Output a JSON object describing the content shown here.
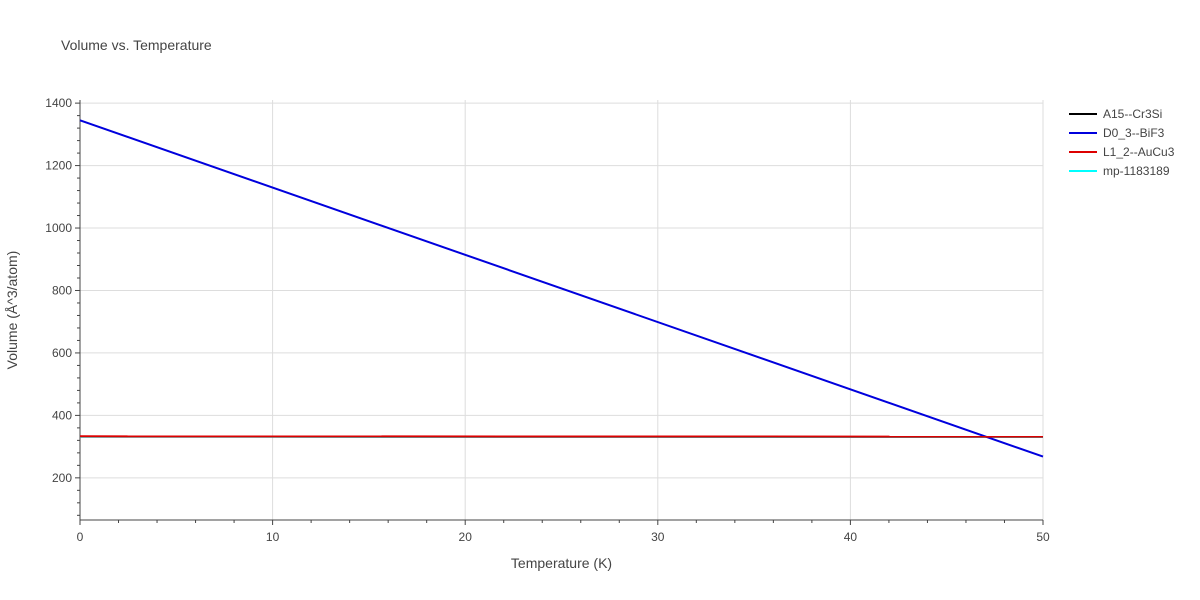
{
  "chart_data": {
    "type": "line",
    "title": "Volume vs. Temperature",
    "xlabel": "Temperature (K)",
    "ylabel": "Volume (Å^3/atom)",
    "xlim": [
      0,
      50
    ],
    "ylim": [
      65,
      1410
    ],
    "x_ticks": [
      0,
      10,
      20,
      30,
      40,
      50
    ],
    "y_ticks": [
      200,
      400,
      600,
      800,
      1000,
      1200,
      1400
    ],
    "grid": true,
    "legend_position": "top-right",
    "series": [
      {
        "name": "A15--Cr3Si",
        "color": "#000000",
        "x": [
          0,
          50
        ],
        "y": [
          332,
          331
        ]
      },
      {
        "name": "D0_3--BiF3",
        "color": "#0000dd",
        "x": [
          0,
          50
        ],
        "y": [
          1345,
          268
        ]
      },
      {
        "name": "L1_2--AuCu3",
        "color": "#dd0000",
        "x": [
          0,
          50
        ],
        "y": [
          333,
          332
        ]
      },
      {
        "name": "mp-1183189",
        "color": "#00ffff",
        "x": [
          0,
          50
        ],
        "y": [
          332,
          331
        ]
      }
    ]
  }
}
